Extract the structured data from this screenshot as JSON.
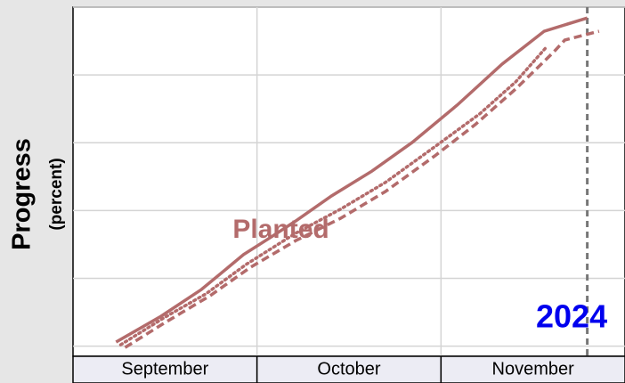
{
  "chart_data": {
    "type": "line",
    "y_label": "Progress",
    "y_sublabel": "(percent)",
    "categories": [
      "September",
      "October",
      "November"
    ],
    "xlim": [
      0,
      3
    ],
    "ylim": [
      -3,
      100
    ],
    "yticks": [
      0,
      20,
      40,
      60,
      80,
      100
    ],
    "grid": true,
    "color": "#b36b6b",
    "series": [
      {
        "dash": "solid",
        "x": [
          0.234,
          0.478,
          0.698,
          0.927,
          1.063,
          1.21,
          1.405,
          1.624,
          1.844,
          2.088,
          2.332,
          2.561,
          2.795
        ],
        "values": [
          1.2,
          8.8,
          16.7,
          27.0,
          31.7,
          36.9,
          44.3,
          51.6,
          60.1,
          71.1,
          83.2,
          92.9,
          96.8
        ]
      },
      {
        "dash": "dotted",
        "x": [
          0.259,
          0.502,
          0.722,
          0.941,
          1.21,
          1.454,
          1.698,
          1.966,
          2.21,
          2.405,
          2.576
        ],
        "values": [
          0.4,
          8.6,
          15.4,
          24.1,
          33.3,
          40.4,
          48.3,
          58.8,
          68.5,
          77.9,
          88.4
        ]
      },
      {
        "dash": "dashed",
        "x": [
          0.283,
          0.502,
          0.746,
          0.966,
          1.21,
          1.454,
          1.698,
          1.966,
          2.185,
          2.405,
          2.615,
          2.673,
          2.859
        ],
        "values": [
          -0.4,
          7.0,
          14.9,
          23.3,
          31.1,
          37.7,
          45.6,
          56.1,
          65.3,
          75.8,
          86.9,
          90.3,
          92.9
        ]
      }
    ],
    "reference_x": 2.795,
    "annotations": [
      {
        "text": "Planted",
        "x": 1.13,
        "y": 34,
        "color": "#b36b6b"
      },
      {
        "text": "2024",
        "x": 2.71,
        "y": 8,
        "color": "#0000ee"
      }
    ]
  }
}
